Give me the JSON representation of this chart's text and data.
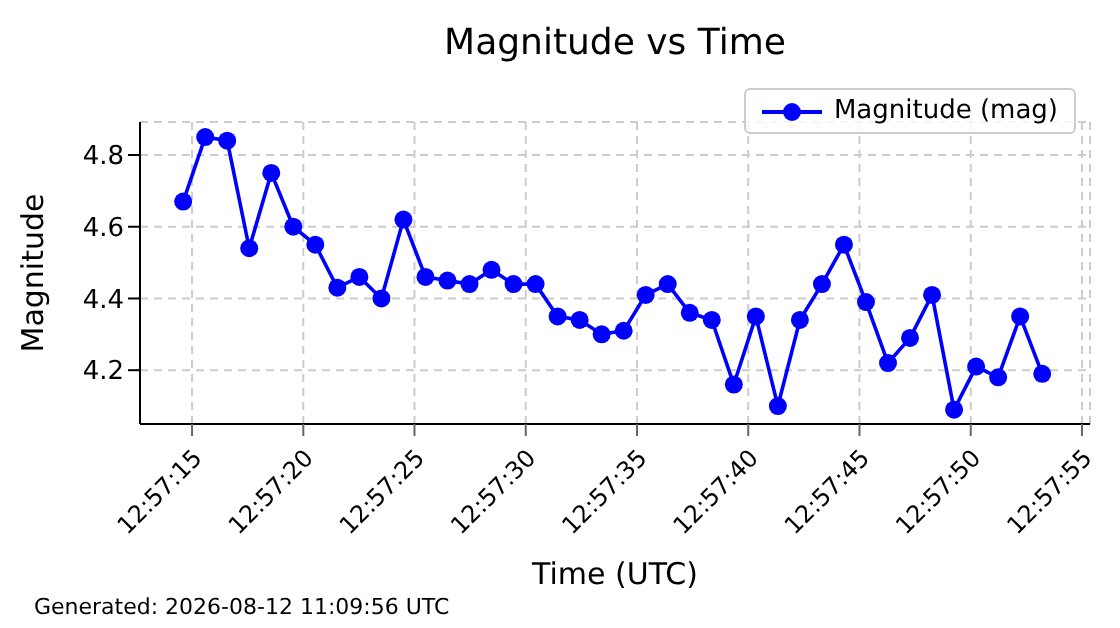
{
  "chart_data": {
    "type": "line",
    "title": "Magnitude vs Time",
    "xlabel": "Time (UTC)",
    "ylabel": "Magnitude",
    "annotations": [
      "Generated: 2026-08-12 11:09:56 UTC"
    ],
    "x": [
      12.954056,
      12.954331,
      12.954606,
      12.954881,
      12.955156,
      12.955431,
      12.955706,
      12.955981,
      12.956256,
      12.956531,
      12.956806,
      12.957081,
      12.957356,
      12.957631,
      12.957906,
      12.958181,
      12.958456,
      12.958731,
      12.959006,
      12.959281,
      12.959556,
      12.959831,
      12.960106,
      12.960381,
      12.960656,
      12.960931,
      12.961206,
      12.961481,
      12.961756,
      12.962031,
      12.962306,
      12.962581,
      12.962856,
      12.963131,
      12.963406,
      12.963681,
      12.963956,
      12.964231,
      12.964506,
      12.964781
    ],
    "series": [
      {
        "name": "Magnitude (mag)",
        "color": "#0000ff",
        "values": [
          4.67,
          4.85,
          4.84,
          4.54,
          4.75,
          4.6,
          4.55,
          4.43,
          4.46,
          4.4,
          4.62,
          4.46,
          4.45,
          4.44,
          4.48,
          4.44,
          4.44,
          4.35,
          4.34,
          4.3,
          4.31,
          4.41,
          4.44,
          4.36,
          4.34,
          4.16,
          4.35,
          4.1,
          4.34,
          4.44,
          4.55,
          4.39,
          4.22,
          4.29,
          4.41,
          4.09,
          4.21,
          4.18,
          4.35,
          4.19
        ]
      }
    ],
    "xlim": [
      12.953517,
      12.965378
    ],
    "xticks": [
      {
        "value": 12.954167,
        "label": "12:57:15"
      },
      {
        "value": 12.955556,
        "label": "12:57:20"
      },
      {
        "value": 12.956944,
        "label": "12:57:25"
      },
      {
        "value": 12.958333,
        "label": "12:57:30"
      },
      {
        "value": 12.959722,
        "label": "12:57:35"
      },
      {
        "value": 12.961111,
        "label": "12:57:40"
      },
      {
        "value": 12.9625,
        "label": "12:57:45"
      },
      {
        "value": 12.963889,
        "label": "12:57:50"
      },
      {
        "value": 12.965278,
        "label": "12:57:55"
      }
    ],
    "ylim": [
      4.05,
      4.892
    ],
    "yticks": [
      4.2,
      4.4,
      4.6,
      4.8
    ],
    "grid": true,
    "legend": "top right",
    "marker": "circle",
    "line_style": "solid"
  }
}
